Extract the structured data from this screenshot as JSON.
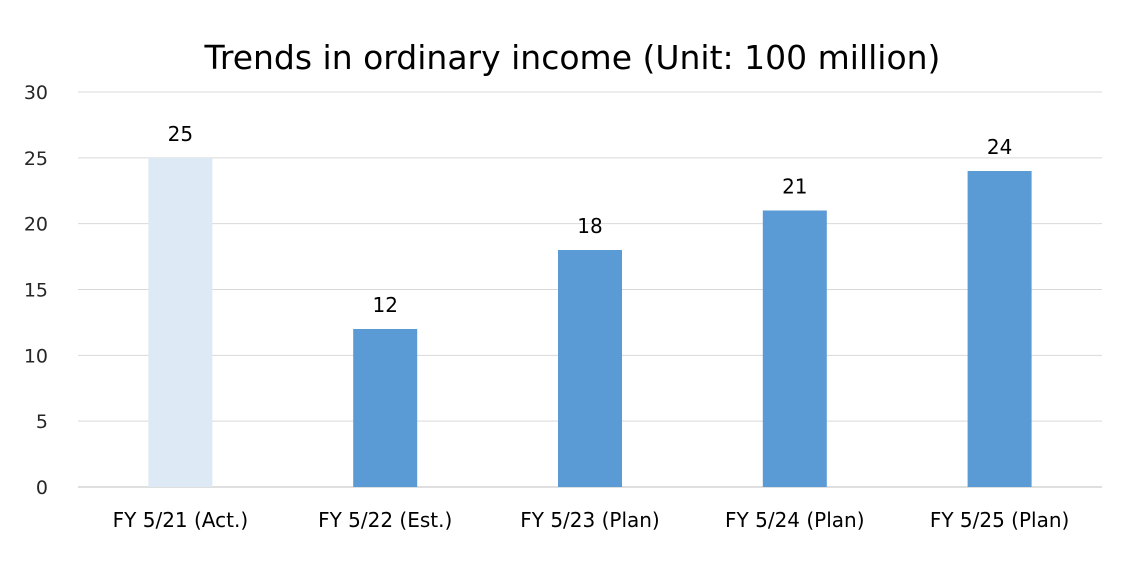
{
  "chart_data": {
    "type": "bar",
    "title": "Trends in ordinary income (Unit: 100 million)",
    "categories": [
      "FY 5/21 (Act.)",
      "FY 5/22 (Est.)",
      "FY 5/23 (Plan)",
      "FY 5/24 (Plan)",
      "FY 5/25 (Plan)"
    ],
    "values": [
      25,
      12,
      18,
      21,
      24
    ],
    "data_labels": [
      "25",
      "12",
      "18",
      "21",
      "24"
    ],
    "yticks": [
      0,
      5,
      10,
      15,
      20,
      25,
      30
    ],
    "ylim": [
      0,
      30
    ],
    "xlabel": "",
    "ylabel": "",
    "grid": true,
    "bar_colors": [
      "#dde9f5",
      "#5b9bd5",
      "#5b9bd5",
      "#5b9bd5",
      "#5b9bd5"
    ]
  }
}
